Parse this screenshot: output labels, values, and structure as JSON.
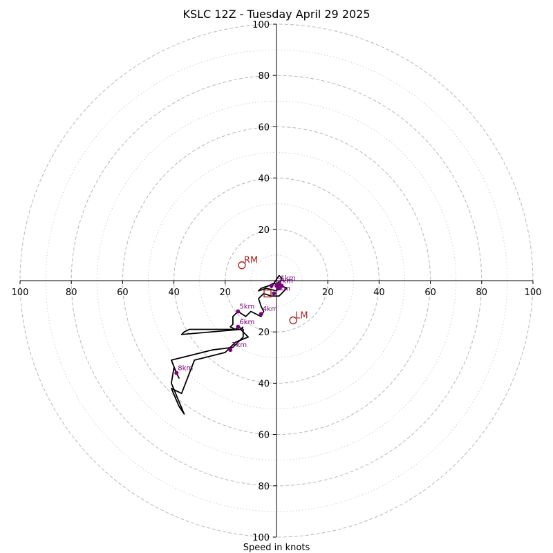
{
  "chart_data": {
    "type": "hodograph",
    "title": "KSLC 12Z - Tuesday April 29 2025",
    "xlabel": "Speed in knots",
    "units": "knots",
    "range": [
      -100,
      100
    ],
    "rings_major": [
      20,
      40,
      60,
      80,
      100
    ],
    "rings_minor": [
      10,
      30,
      50,
      70,
      90
    ],
    "tick_labels": {
      "x_left": [
        "100",
        "80",
        "60",
        "40",
        "20"
      ],
      "x_right": [
        "20",
        "40",
        "60",
        "80",
        "100"
      ],
      "y_top": [
        "100",
        "80",
        "60",
        "40",
        "20"
      ],
      "y_bottom": [
        "20",
        "40",
        "60",
        "80",
        "100"
      ]
    },
    "colors": {
      "trace": "#000000",
      "height_marker": "#800080",
      "storm_motion": "#b22222",
      "grid": "#bdbdbd"
    },
    "wind_trace": [
      [
        -2,
        -3
      ],
      [
        -1,
        -1
      ],
      [
        1,
        2
      ],
      [
        2,
        1
      ],
      [
        1,
        -2
      ],
      [
        0,
        -4
      ],
      [
        -4,
        -3
      ],
      [
        -7,
        -4
      ],
      [
        -6,
        -3
      ],
      [
        -3,
        -2
      ],
      [
        -1,
        -1
      ],
      [
        2,
        -2
      ],
      [
        4,
        -3
      ],
      [
        3,
        -4
      ],
      [
        1,
        -6
      ],
      [
        -2,
        -6
      ],
      [
        -5,
        -5
      ],
      [
        -7,
        -7
      ],
      [
        -6,
        -10
      ],
      [
        -5,
        -12
      ],
      [
        -6,
        -14
      ],
      [
        -8,
        -13
      ],
      [
        -10,
        -12
      ],
      [
        -12,
        -14
      ],
      [
        -15,
        -12
      ],
      [
        -17,
        -14
      ],
      [
        -17,
        -17
      ],
      [
        -18,
        -18
      ],
      [
        -16,
        -19
      ],
      [
        -15,
        -18
      ],
      [
        -13,
        -19
      ],
      [
        -13,
        -22
      ],
      [
        -17,
        -26
      ],
      [
        -25,
        -27
      ],
      [
        -33,
        -29
      ],
      [
        -41,
        -31
      ],
      [
        -39,
        -36
      ],
      [
        -38,
        -38
      ],
      [
        -40,
        -34
      ],
      [
        -41,
        -40
      ],
      [
        -36,
        -52
      ],
      [
        -38,
        -49
      ],
      [
        -41,
        -42
      ],
      [
        -37,
        -44
      ],
      [
        -32,
        -31
      ],
      [
        -20,
        -28
      ],
      [
        -16,
        -24
      ],
      [
        -11,
        -22
      ],
      [
        -14,
        -19
      ],
      [
        -27,
        -19
      ],
      [
        -34,
        -19
      ],
      [
        -36,
        -20
      ],
      [
        -37,
        -21
      ],
      [
        -14,
        -19
      ],
      [
        -13,
        -18
      ],
      [
        -13,
        -18
      ]
    ],
    "height_markers": [
      {
        "label": "1km",
        "u": 1,
        "v": -1
      },
      {
        "label": "2km",
        "u": 0,
        "v": -2
      },
      {
        "label": "3km",
        "u": -1,
        "v": -5
      },
      {
        "label": "4km",
        "u": -6,
        "v": -13
      },
      {
        "label": "5km",
        "u": -15,
        "v": -12
      },
      {
        "label": "6km",
        "u": -15,
        "v": -18
      },
      {
        "label": "7km",
        "u": -18,
        "v": -27
      },
      {
        "label": "8km",
        "u": -39,
        "v": -36
      }
    ],
    "extra_markers": [
      {
        "u": 1,
        "v": -3
      },
      {
        "u": 2,
        "v": -2
      },
      {
        "u": -2,
        "v": -2
      }
    ],
    "storm_motion": {
      "right_mover": {
        "label": "RM",
        "u": -13.5,
        "v": 6
      },
      "left_mover": {
        "label": "LM",
        "u": 6.5,
        "v": -15.5
      },
      "mean_wind": {
        "u": -3.5,
        "v": -5
      }
    }
  }
}
